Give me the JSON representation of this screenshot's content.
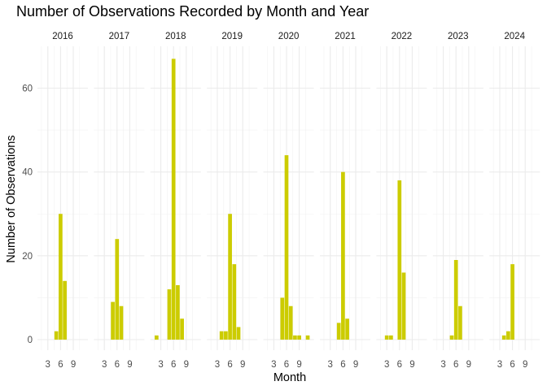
{
  "chart_data": {
    "type": "bar",
    "title": "Number of Observations Recorded by Month and Year",
    "xlabel": "Month",
    "ylabel": "Number of Observations",
    "facet_by": "Year",
    "x_ticks": [
      3,
      6,
      9
    ],
    "y_ticks": [
      0,
      20,
      40,
      60
    ],
    "xlim": [
      1,
      12
    ],
    "ylim": [
      0,
      70
    ],
    "bar_color": "#CCCC00",
    "grid": true,
    "panels": [
      {
        "year": "2016",
        "bars": [
          {
            "month": 5,
            "value": 2
          },
          {
            "month": 6,
            "value": 30
          },
          {
            "month": 7,
            "value": 14
          }
        ]
      },
      {
        "year": "2017",
        "bars": [
          {
            "month": 5,
            "value": 9
          },
          {
            "month": 6,
            "value": 24
          },
          {
            "month": 7,
            "value": 8
          }
        ]
      },
      {
        "year": "2018",
        "bars": [
          {
            "month": 2,
            "value": 1
          },
          {
            "month": 5,
            "value": 12
          },
          {
            "month": 6,
            "value": 67
          },
          {
            "month": 7,
            "value": 13
          },
          {
            "month": 8,
            "value": 5
          }
        ]
      },
      {
        "year": "2019",
        "bars": [
          {
            "month": 4,
            "value": 2
          },
          {
            "month": 5,
            "value": 2
          },
          {
            "month": 6,
            "value": 30
          },
          {
            "month": 7,
            "value": 18
          },
          {
            "month": 8,
            "value": 3
          }
        ]
      },
      {
        "year": "2020",
        "bars": [
          {
            "month": 5,
            "value": 10
          },
          {
            "month": 6,
            "value": 44
          },
          {
            "month": 7,
            "value": 8
          },
          {
            "month": 8,
            "value": 1
          },
          {
            "month": 9,
            "value": 1
          },
          {
            "month": 11,
            "value": 1
          }
        ]
      },
      {
        "year": "2021",
        "bars": [
          {
            "month": 5,
            "value": 4
          },
          {
            "month": 6,
            "value": 40
          },
          {
            "month": 7,
            "value": 5
          }
        ]
      },
      {
        "year": "2022",
        "bars": [
          {
            "month": 3,
            "value": 1
          },
          {
            "month": 4,
            "value": 1
          },
          {
            "month": 6,
            "value": 38
          },
          {
            "month": 7,
            "value": 16
          }
        ]
      },
      {
        "year": "2023",
        "bars": [
          {
            "month": 5,
            "value": 1
          },
          {
            "month": 6,
            "value": 19
          },
          {
            "month": 7,
            "value": 8
          }
        ]
      },
      {
        "year": "2024",
        "bars": [
          {
            "month": 4,
            "value": 1
          },
          {
            "month": 5,
            "value": 2
          },
          {
            "month": 6,
            "value": 18
          }
        ]
      }
    ]
  }
}
